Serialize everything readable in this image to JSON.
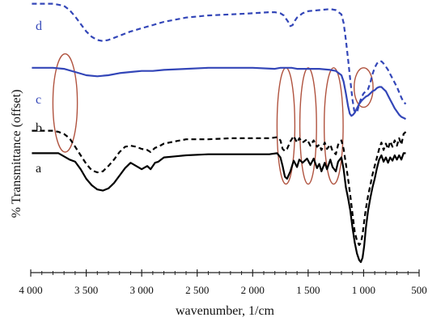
{
  "chart_data": {
    "type": "line",
    "xlabel": "wavenumber, 1/cm",
    "ylabel": "% Transmittance (offset)",
    "xlim": [
      4000,
      500
    ],
    "x_reversed": true,
    "x_ticks": [
      4000,
      3500,
      3000,
      2500,
      2000,
      1500,
      1000,
      500
    ],
    "x_tick_labels": [
      "4 000",
      "3 500",
      "3 000",
      "2 500",
      "2 000",
      "1 500",
      "1 000",
      "500"
    ],
    "y_ticks_shown": false,
    "series": [
      {
        "name": "a",
        "color": "#000000",
        "style": "solid",
        "points": [
          [
            3990,
            0.02
          ],
          [
            3750,
            0.02
          ],
          [
            3700,
            -0.01
          ],
          [
            3650,
            -0.04
          ],
          [
            3600,
            -0.06
          ],
          [
            3550,
            -0.13
          ],
          [
            3500,
            -0.22
          ],
          [
            3450,
            -0.28
          ],
          [
            3400,
            -0.32
          ],
          [
            3350,
            -0.33
          ],
          [
            3300,
            -0.31
          ],
          [
            3250,
            -0.26
          ],
          [
            3200,
            -0.19
          ],
          [
            3150,
            -0.12
          ],
          [
            3100,
            -0.07
          ],
          [
            3050,
            -0.1
          ],
          [
            3000,
            -0.13
          ],
          [
            2950,
            -0.1
          ],
          [
            2920,
            -0.13
          ],
          [
            2880,
            -0.07
          ],
          [
            2850,
            -0.06
          ],
          [
            2800,
            -0.02
          ],
          [
            2700,
            -0.01
          ],
          [
            2600,
            0.0
          ],
          [
            2400,
            0.01
          ],
          [
            2200,
            0.01
          ],
          [
            2000,
            0.01
          ],
          [
            1850,
            0.01
          ],
          [
            1780,
            0.02
          ],
          [
            1750,
            -0.02
          ],
          [
            1730,
            -0.1
          ],
          [
            1710,
            -0.2
          ],
          [
            1690,
            -0.22
          ],
          [
            1660,
            -0.15
          ],
          [
            1630,
            -0.05
          ],
          [
            1600,
            -0.11
          ],
          [
            1580,
            -0.04
          ],
          [
            1550,
            -0.07
          ],
          [
            1510,
            -0.03
          ],
          [
            1480,
            -0.09
          ],
          [
            1450,
            -0.03
          ],
          [
            1420,
            -0.12
          ],
          [
            1400,
            -0.08
          ],
          [
            1380,
            -0.15
          ],
          [
            1350,
            -0.07
          ],
          [
            1330,
            -0.13
          ],
          [
            1300,
            -0.04
          ],
          [
            1280,
            -0.11
          ],
          [
            1250,
            -0.15
          ],
          [
            1230,
            -0.06
          ],
          [
            1200,
            -0.02
          ],
          [
            1180,
            -0.13
          ],
          [
            1160,
            -0.3
          ],
          [
            1140,
            -0.4
          ],
          [
            1120,
            -0.52
          ],
          [
            1100,
            -0.68
          ],
          [
            1080,
            -0.82
          ],
          [
            1060,
            -0.92
          ],
          [
            1040,
            -0.98
          ],
          [
            1025,
            -1.0
          ],
          [
            1010,
            -0.96
          ],
          [
            995,
            -0.85
          ],
          [
            980,
            -0.68
          ],
          [
            960,
            -0.52
          ],
          [
            940,
            -0.4
          ],
          [
            920,
            -0.3
          ],
          [
            900,
            -0.22
          ],
          [
            880,
            -0.12
          ],
          [
            860,
            -0.04
          ],
          [
            840,
            0.0
          ],
          [
            820,
            -0.06
          ],
          [
            800,
            -0.02
          ],
          [
            780,
            -0.07
          ],
          [
            760,
            -0.02
          ],
          [
            740,
            -0.05
          ],
          [
            720,
            0.0
          ],
          [
            700,
            -0.04
          ],
          [
            680,
            0.0
          ],
          [
            660,
            -0.04
          ],
          [
            640,
            0.02
          ],
          [
            620,
            0.02
          ]
        ]
      },
      {
        "name": "b",
        "color": "#000000",
        "style": "dashed",
        "points": [
          [
            3990,
            0.23
          ],
          [
            3800,
            0.23
          ],
          [
            3750,
            0.22
          ],
          [
            3700,
            0.2
          ],
          [
            3650,
            0.16
          ],
          [
            3600,
            0.08
          ],
          [
            3550,
            0.0
          ],
          [
            3500,
            -0.08
          ],
          [
            3450,
            -0.14
          ],
          [
            3400,
            -0.16
          ],
          [
            3350,
            -0.15
          ],
          [
            3300,
            -0.1
          ],
          [
            3250,
            -0.04
          ],
          [
            3200,
            0.03
          ],
          [
            3150,
            0.08
          ],
          [
            3100,
            0.09
          ],
          [
            3050,
            0.08
          ],
          [
            3000,
            0.06
          ],
          [
            2950,
            0.05
          ],
          [
            2920,
            0.03
          ],
          [
            2880,
            0.07
          ],
          [
            2850,
            0.08
          ],
          [
            2800,
            0.11
          ],
          [
            2700,
            0.13
          ],
          [
            2600,
            0.15
          ],
          [
            2400,
            0.15
          ],
          [
            2200,
            0.16
          ],
          [
            2000,
            0.16
          ],
          [
            1850,
            0.16
          ],
          [
            1780,
            0.17
          ],
          [
            1750,
            0.14
          ],
          [
            1730,
            0.06
          ],
          [
            1710,
            0.04
          ],
          [
            1690,
            0.06
          ],
          [
            1660,
            0.13
          ],
          [
            1630,
            0.18
          ],
          [
            1600,
            0.12
          ],
          [
            1580,
            0.16
          ],
          [
            1550,
            0.12
          ],
          [
            1510,
            0.15
          ],
          [
            1480,
            0.09
          ],
          [
            1450,
            0.14
          ],
          [
            1420,
            0.08
          ],
          [
            1400,
            0.1
          ],
          [
            1380,
            0.05
          ],
          [
            1350,
            0.12
          ],
          [
            1330,
            0.06
          ],
          [
            1300,
            0.1
          ],
          [
            1280,
            0.04
          ],
          [
            1250,
            0.01
          ],
          [
            1230,
            0.1
          ],
          [
            1200,
            0.14
          ],
          [
            1180,
            0.06
          ],
          [
            1160,
            -0.08
          ],
          [
            1140,
            -0.22
          ],
          [
            1120,
            -0.38
          ],
          [
            1100,
            -0.55
          ],
          [
            1080,
            -0.72
          ],
          [
            1060,
            -0.8
          ],
          [
            1040,
            -0.84
          ],
          [
            1025,
            -0.82
          ],
          [
            1010,
            -0.74
          ],
          [
            995,
            -0.62
          ],
          [
            980,
            -0.5
          ],
          [
            960,
            -0.38
          ],
          [
            940,
            -0.28
          ],
          [
            920,
            -0.18
          ],
          [
            900,
            -0.1
          ],
          [
            880,
            -0.02
          ],
          [
            860,
            0.06
          ],
          [
            840,
            0.12
          ],
          [
            820,
            0.05
          ],
          [
            800,
            0.11
          ],
          [
            780,
            0.06
          ],
          [
            760,
            0.13
          ],
          [
            740,
            0.08
          ],
          [
            720,
            0.14
          ],
          [
            700,
            0.09
          ],
          [
            680,
            0.16
          ],
          [
            660,
            0.1
          ],
          [
            640,
            0.2
          ],
          [
            620,
            0.22
          ]
        ]
      },
      {
        "name": "c",
        "color": "#3346b8",
        "style": "solid",
        "points": [
          [
            3990,
            0.82
          ],
          [
            3800,
            0.82
          ],
          [
            3700,
            0.81
          ],
          [
            3600,
            0.78
          ],
          [
            3500,
            0.75
          ],
          [
            3400,
            0.74
          ],
          [
            3300,
            0.75
          ],
          [
            3200,
            0.77
          ],
          [
            3100,
            0.78
          ],
          [
            3000,
            0.79
          ],
          [
            2900,
            0.79
          ],
          [
            2800,
            0.8
          ],
          [
            2600,
            0.81
          ],
          [
            2400,
            0.82
          ],
          [
            2200,
            0.82
          ],
          [
            2000,
            0.82
          ],
          [
            1800,
            0.81
          ],
          [
            1750,
            0.82
          ],
          [
            1700,
            0.82
          ],
          [
            1650,
            0.82
          ],
          [
            1600,
            0.81
          ],
          [
            1500,
            0.81
          ],
          [
            1400,
            0.81
          ],
          [
            1300,
            0.8
          ],
          [
            1250,
            0.79
          ],
          [
            1200,
            0.75
          ],
          [
            1180,
            0.69
          ],
          [
            1160,
            0.58
          ],
          [
            1140,
            0.46
          ],
          [
            1125,
            0.39
          ],
          [
            1110,
            0.37
          ],
          [
            1095,
            0.38
          ],
          [
            1080,
            0.4
          ],
          [
            1060,
            0.44
          ],
          [
            1040,
            0.48
          ],
          [
            1020,
            0.51
          ],
          [
            1000,
            0.53
          ],
          [
            980,
            0.55
          ],
          [
            960,
            0.56
          ],
          [
            940,
            0.58
          ],
          [
            920,
            0.6
          ],
          [
            900,
            0.61
          ],
          [
            880,
            0.63
          ],
          [
            860,
            0.64
          ],
          [
            840,
            0.64
          ],
          [
            820,
            0.62
          ],
          [
            800,
            0.6
          ],
          [
            780,
            0.56
          ],
          [
            760,
            0.52
          ],
          [
            740,
            0.48
          ],
          [
            720,
            0.44
          ],
          [
            700,
            0.41
          ],
          [
            680,
            0.38
          ],
          [
            660,
            0.36
          ],
          [
            640,
            0.35
          ],
          [
            620,
            0.34
          ]
        ]
      },
      {
        "name": "d",
        "color": "#3346b8",
        "style": "dashed",
        "points": [
          [
            3990,
            1.42
          ],
          [
            3800,
            1.42
          ],
          [
            3700,
            1.4
          ],
          [
            3650,
            1.36
          ],
          [
            3600,
            1.3
          ],
          [
            3550,
            1.23
          ],
          [
            3500,
            1.16
          ],
          [
            3450,
            1.11
          ],
          [
            3400,
            1.08
          ],
          [
            3350,
            1.07
          ],
          [
            3300,
            1.08
          ],
          [
            3250,
            1.1
          ],
          [
            3200,
            1.12
          ],
          [
            3150,
            1.14
          ],
          [
            3100,
            1.16
          ],
          [
            3000,
            1.19
          ],
          [
            2900,
            1.22
          ],
          [
            2800,
            1.25
          ],
          [
            2600,
            1.29
          ],
          [
            2400,
            1.31
          ],
          [
            2200,
            1.32
          ],
          [
            2000,
            1.33
          ],
          [
            1850,
            1.34
          ],
          [
            1800,
            1.34
          ],
          [
            1750,
            1.33
          ],
          [
            1720,
            1.31
          ],
          [
            1700,
            1.28
          ],
          [
            1680,
            1.25
          ],
          [
            1660,
            1.21
          ],
          [
            1640,
            1.22
          ],
          [
            1620,
            1.26
          ],
          [
            1600,
            1.29
          ],
          [
            1550,
            1.33
          ],
          [
            1500,
            1.35
          ],
          [
            1400,
            1.36
          ],
          [
            1300,
            1.37
          ],
          [
            1250,
            1.36
          ],
          [
            1200,
            1.32
          ],
          [
            1180,
            1.24
          ],
          [
            1160,
            1.08
          ],
          [
            1140,
            0.9
          ],
          [
            1120,
            0.7
          ],
          [
            1100,
            0.52
          ],
          [
            1085,
            0.42
          ],
          [
            1070,
            0.4
          ],
          [
            1055,
            0.42
          ],
          [
            1040,
            0.48
          ],
          [
            1020,
            0.54
          ],
          [
            1000,
            0.58
          ],
          [
            980,
            0.6
          ],
          [
            960,
            0.62
          ],
          [
            940,
            0.68
          ],
          [
            920,
            0.76
          ],
          [
            900,
            0.82
          ],
          [
            880,
            0.86
          ],
          [
            860,
            0.88
          ],
          [
            840,
            0.88
          ],
          [
            820,
            0.86
          ],
          [
            800,
            0.83
          ],
          [
            780,
            0.8
          ],
          [
            760,
            0.76
          ],
          [
            740,
            0.72
          ],
          [
            720,
            0.68
          ],
          [
            700,
            0.64
          ],
          [
            680,
            0.59
          ],
          [
            660,
            0.54
          ],
          [
            640,
            0.5
          ],
          [
            620,
            0.48
          ]
        ]
      }
    ],
    "highlights": {
      "color": "#b0533f",
      "ellipses": [
        {
          "center": 3690,
          "halfwidth": 110,
          "top": 0.95,
          "bottom": 0.03
        },
        {
          "center": 1700,
          "halfwidth": 80,
          "top": 0.82,
          "bottom": -0.27
        },
        {
          "center": 1500,
          "halfwidth": 75,
          "top": 0.82,
          "bottom": -0.27
        },
        {
          "center": 1270,
          "halfwidth": 85,
          "top": 0.82,
          "bottom": -0.27
        },
        {
          "center": 1000,
          "halfwidth": 85,
          "top": 0.82,
          "bottom": 0.45
        }
      ]
    }
  }
}
